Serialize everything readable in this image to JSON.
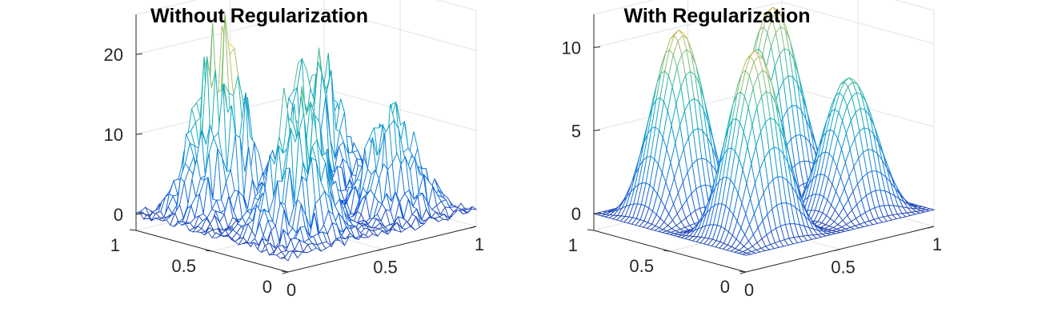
{
  "chart_data": [
    {
      "type": "surface",
      "title": "Without Regularization",
      "xlabel": "",
      "ylabel": "",
      "zlabel": "",
      "xlim": [
        0,
        1
      ],
      "ylim": [
        0,
        1
      ],
      "zlim": [
        -2,
        25
      ],
      "x_ticks": [
        0,
        0.5,
        1
      ],
      "y_ticks": [
        0,
        0.5,
        1
      ],
      "z_ticks": [
        0,
        10,
        20
      ],
      "x_tick_labels": [
        "0",
        "0.5",
        "1"
      ],
      "y_tick_labels": [
        "0",
        "0.5",
        "1"
      ],
      "z_tick_labels": [
        "0",
        "10",
        "20"
      ],
      "grid": "on",
      "colormap": "parula",
      "noisy": true,
      "surface": {
        "form": "sum of four sin-squared bumps centered at (0.25,0.25),(0.25,0.75),(0.75,0.25),(0.75,0.75), zero near center",
        "peak_values": [
          17,
          21,
          12,
          16
        ],
        "grid_resolution": 41
      }
    },
    {
      "type": "surface",
      "title": "With Regularization",
      "xlabel": "",
      "ylabel": "",
      "zlabel": "",
      "xlim": [
        0,
        1
      ],
      "ylim": [
        0,
        1
      ],
      "zlim": [
        -1,
        12
      ],
      "x_ticks": [
        0,
        0.5,
        1
      ],
      "y_ticks": [
        0,
        0.5,
        1
      ],
      "z_ticks": [
        0,
        5,
        10
      ],
      "x_tick_labels": [
        "0",
        "0.5",
        "1"
      ],
      "y_tick_labels": [
        "0",
        "0.5",
        "1"
      ],
      "z_tick_labels": [
        "0",
        "5",
        "10"
      ],
      "grid": "on",
      "colormap": "parula",
      "noisy": false,
      "surface": {
        "form": "sum of four sin-squared bumps centered at (0.25,0.25),(0.25,0.75),(0.75,0.25),(0.75,0.75), zero near center",
        "peak_values": [
          11,
          11,
          8,
          11
        ],
        "grid_resolution": 41
      }
    }
  ]
}
